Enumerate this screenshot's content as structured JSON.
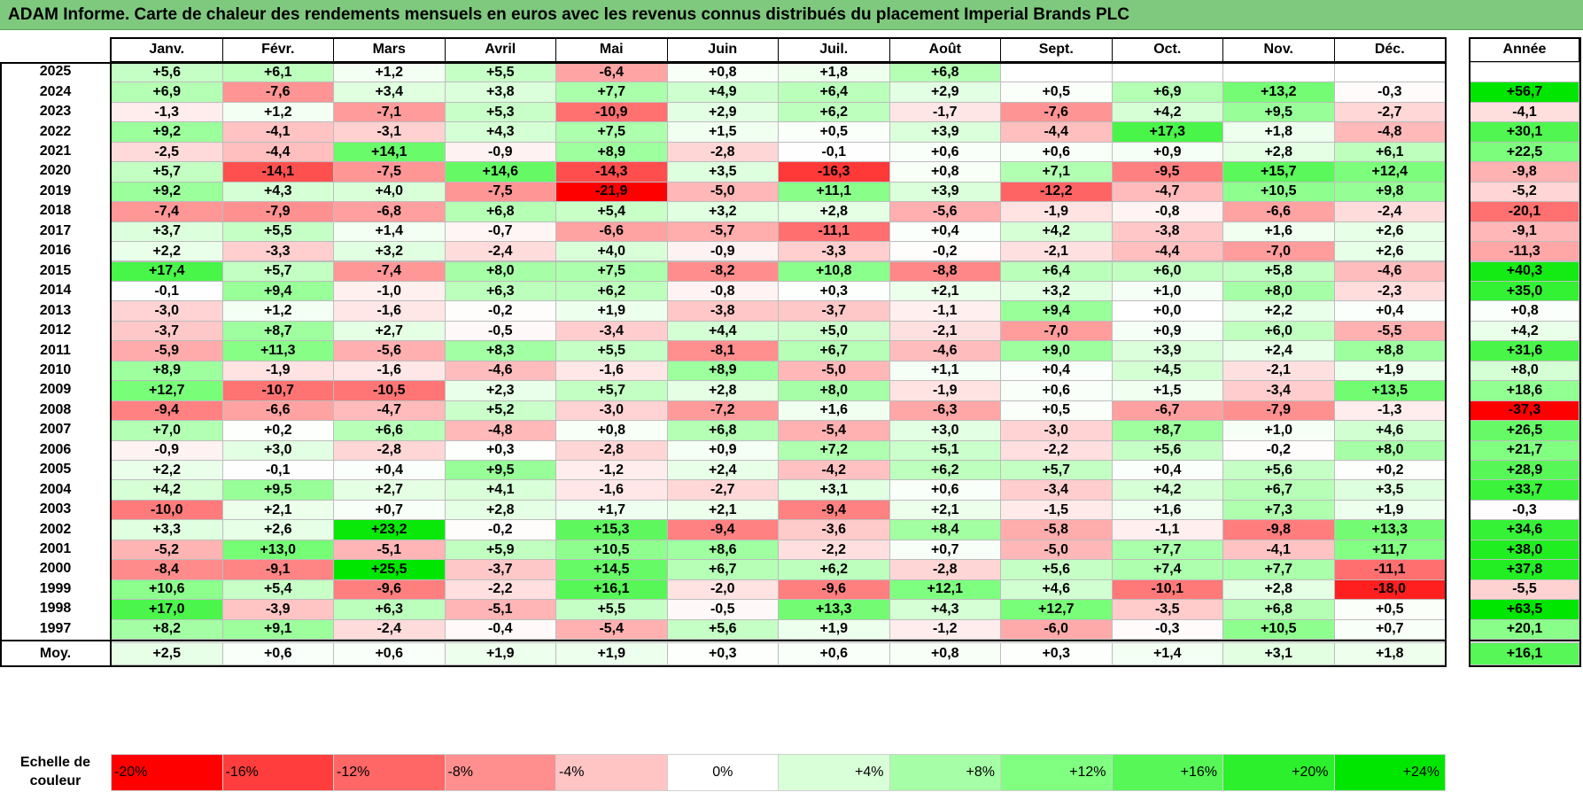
{
  "title": "ADAM Informe. Carte de chaleur des rendements mensuels en euros avec les revenus connus distribués du placement Imperial Brands PLC",
  "chart_data": {
    "type": "heatmap",
    "title": "ADAM Informe. Carte de chaleur des rendements mensuels en euros avec les revenus connus distribués du placement Imperial Brands PLC",
    "columns": [
      "Janv.",
      "Févr.",
      "Mars",
      "Avril",
      "Mai",
      "Juin",
      "Juil.",
      "Août",
      "Sept.",
      "Oct.",
      "Nov.",
      "Déc."
    ],
    "year_column_label": "Année",
    "rows": [
      {
        "year": "2025",
        "values": [
          "+5,6",
          "+6,1",
          "+1,2",
          "+5,5",
          "-6,4",
          "+0,8",
          "+1,8",
          "+6,8",
          "",
          "",
          "",
          ""
        ],
        "annual": ""
      },
      {
        "year": "2024",
        "values": [
          "+6,9",
          "-7,6",
          "+3,4",
          "+3,8",
          "+7,7",
          "+4,9",
          "+6,4",
          "+2,9",
          "+0,5",
          "+6,9",
          "+13,2",
          "-0,3"
        ],
        "annual": "+56,7"
      },
      {
        "year": "2023",
        "values": [
          "-1,3",
          "+1,2",
          "-7,1",
          "+5,3",
          "-10,9",
          "+2,9",
          "+6,2",
          "-1,7",
          "-7,6",
          "+4,2",
          "+9,5",
          "-2,7"
        ],
        "annual": "-4,1"
      },
      {
        "year": "2022",
        "values": [
          "+9,2",
          "-4,1",
          "-3,1",
          "+4,3",
          "+7,5",
          "+1,5",
          "+0,5",
          "+3,9",
          "-4,4",
          "+17,3",
          "+1,8",
          "-4,8"
        ],
        "annual": "+30,1"
      },
      {
        "year": "2021",
        "values": [
          "-2,5",
          "-4,4",
          "+14,1",
          "-0,9",
          "+8,9",
          "-2,8",
          "-0,1",
          "+0,6",
          "+0,6",
          "+0,9",
          "+2,8",
          "+6,1"
        ],
        "annual": "+22,5"
      },
      {
        "year": "2020",
        "values": [
          "+5,7",
          "-14,1",
          "-7,5",
          "+14,6",
          "-14,3",
          "+3,5",
          "-16,3",
          "+0,8",
          "+7,1",
          "-9,5",
          "+15,7",
          "+12,4"
        ],
        "annual": "-9,8"
      },
      {
        "year": "2019",
        "values": [
          "+9,2",
          "+4,3",
          "+4,0",
          "-7,5",
          "-21,9",
          "-5,0",
          "+11,1",
          "+3,9",
          "-12,2",
          "-4,7",
          "+10,5",
          "+9,8"
        ],
        "annual": "-5,2"
      },
      {
        "year": "2018",
        "values": [
          "-7,4",
          "-7,9",
          "-6,8",
          "+6,8",
          "+5,4",
          "+3,2",
          "+2,8",
          "-5,6",
          "-1,9",
          "-0,8",
          "-6,6",
          "-2,4"
        ],
        "annual": "-20,1"
      },
      {
        "year": "2017",
        "values": [
          "+3,7",
          "+5,5",
          "+1,4",
          "-0,7",
          "-6,6",
          "-5,7",
          "-11,1",
          "+0,4",
          "+4,2",
          "-3,8",
          "+1,6",
          "+2,6"
        ],
        "annual": "-9,1"
      },
      {
        "year": "2016",
        "values": [
          "+2,2",
          "-3,3",
          "+3,2",
          "-2,4",
          "+4,0",
          "-0,9",
          "-3,3",
          "-0,2",
          "-2,1",
          "-4,4",
          "-7,0",
          "+2,6"
        ],
        "annual": "-11,3"
      },
      {
        "year": "2015",
        "values": [
          "+17,4",
          "+5,7",
          "-7,4",
          "+8,0",
          "+7,5",
          "-8,2",
          "+10,8",
          "-8,8",
          "+6,4",
          "+6,0",
          "+5,8",
          "-4,6"
        ],
        "annual": "+40,3"
      },
      {
        "year": "2014",
        "values": [
          "-0,1",
          "+9,4",
          "-1,0",
          "+6,3",
          "+6,2",
          "-0,8",
          "+0,3",
          "+2,1",
          "+3,2",
          "+1,0",
          "+8,0",
          "-2,3"
        ],
        "annual": "+35,0"
      },
      {
        "year": "2013",
        "values": [
          "-3,0",
          "+1,2",
          "-1,6",
          "-0,2",
          "+1,9",
          "-3,8",
          "-3,7",
          "-1,1",
          "+9,4",
          "+0,0",
          "+2,2",
          "+0,4"
        ],
        "annual": "+0,8"
      },
      {
        "year": "2012",
        "values": [
          "-3,7",
          "+8,7",
          "+2,7",
          "-0,5",
          "-3,4",
          "+4,4",
          "+5,0",
          "-2,1",
          "-7,0",
          "+0,9",
          "+6,0",
          "-5,5"
        ],
        "annual": "+4,2"
      },
      {
        "year": "2011",
        "values": [
          "-5,9",
          "+11,3",
          "-5,6",
          "+8,3",
          "+5,5",
          "-8,1",
          "+6,7",
          "-4,6",
          "+9,0",
          "+3,9",
          "+2,4",
          "+8,8"
        ],
        "annual": "+31,6"
      },
      {
        "year": "2010",
        "values": [
          "+8,9",
          "-1,9",
          "-1,6",
          "-4,6",
          "-1,6",
          "+8,9",
          "-5,0",
          "+1,1",
          "+0,4",
          "+4,5",
          "-2,1",
          "+1,9"
        ],
        "annual": "+8,0"
      },
      {
        "year": "2009",
        "values": [
          "+12,7",
          "-10,7",
          "-10,5",
          "+2,3",
          "+5,7",
          "+2,8",
          "+8,0",
          "-1,9",
          "+0,6",
          "+1,5",
          "-3,4",
          "+13,5"
        ],
        "annual": "+18,6"
      },
      {
        "year": "2008",
        "values": [
          "-9,4",
          "-6,6",
          "-4,7",
          "+5,2",
          "-3,0",
          "-7,2",
          "+1,6",
          "-6,3",
          "+0,5",
          "-6,7",
          "-7,9",
          "-1,3"
        ],
        "annual": "-37,3"
      },
      {
        "year": "2007",
        "values": [
          "+7,0",
          "+0,2",
          "+6,6",
          "-4,8",
          "+0,8",
          "+6,8",
          "-5,4",
          "+3,0",
          "-3,0",
          "+8,7",
          "+1,0",
          "+4,6"
        ],
        "annual": "+26,5"
      },
      {
        "year": "2006",
        "values": [
          "-0,9",
          "+3,0",
          "-2,8",
          "+0,3",
          "-2,8",
          "+0,9",
          "+7,2",
          "+5,1",
          "-2,2",
          "+5,6",
          "-0,2",
          "+8,0"
        ],
        "annual": "+21,7"
      },
      {
        "year": "2005",
        "values": [
          "+2,2",
          "-0,1",
          "+0,4",
          "+9,5",
          "-1,2",
          "+2,4",
          "-4,2",
          "+6,2",
          "+5,7",
          "+0,4",
          "+5,6",
          "+0,2"
        ],
        "annual": "+28,9"
      },
      {
        "year": "2004",
        "values": [
          "+4,2",
          "+9,5",
          "+2,7",
          "+4,1",
          "-1,6",
          "-2,7",
          "+3,1",
          "+0,6",
          "-3,4",
          "+4,2",
          "+6,7",
          "+3,5"
        ],
        "annual": "+33,7"
      },
      {
        "year": "2003",
        "values": [
          "-10,0",
          "+2,1",
          "+0,7",
          "+2,8",
          "+1,7",
          "+2,1",
          "-9,4",
          "+2,1",
          "-1,5",
          "+1,6",
          "+7,3",
          "+1,9"
        ],
        "annual": "-0,3"
      },
      {
        "year": "2002",
        "values": [
          "+3,3",
          "+2,6",
          "+23,2",
          "-0,2",
          "+15,3",
          "-9,4",
          "-3,6",
          "+8,4",
          "-5,8",
          "-1,1",
          "-9,8",
          "+13,3"
        ],
        "annual": "+34,6"
      },
      {
        "year": "2001",
        "values": [
          "-5,2",
          "+13,0",
          "-5,1",
          "+5,9",
          "+10,5",
          "+8,6",
          "-2,2",
          "+0,7",
          "-5,0",
          "+7,7",
          "-4,1",
          "+11,7"
        ],
        "annual": "+38,0"
      },
      {
        "year": "2000",
        "values": [
          "-8,4",
          "-9,1",
          "+25,5",
          "-3,7",
          "+14,5",
          "+6,7",
          "+6,2",
          "-2,8",
          "+5,6",
          "+7,4",
          "+7,7",
          "-11,1"
        ],
        "annual": "+37,8"
      },
      {
        "year": "1999",
        "values": [
          "+10,6",
          "+5,4",
          "-9,6",
          "-2,2",
          "+16,1",
          "-2,0",
          "-9,6",
          "+12,1",
          "+4,6",
          "-10,1",
          "+2,8",
          "-18,0"
        ],
        "annual": "-5,5"
      },
      {
        "year": "1998",
        "values": [
          "+17,0",
          "-3,9",
          "+6,3",
          "-5,1",
          "+5,5",
          "-0,5",
          "+13,3",
          "+4,3",
          "+12,7",
          "-3,5",
          "+6,8",
          "+0,5"
        ],
        "annual": "+63,5"
      },
      {
        "year": "1997",
        "values": [
          "+8,2",
          "+9,1",
          "-2,4",
          "-0,4",
          "-5,4",
          "+5,6",
          "+1,9",
          "-1,2",
          "-6,0",
          "-0,3",
          "+10,5",
          "+0,7"
        ],
        "annual": "+20,1"
      }
    ],
    "average_row": {
      "label": "Moy.",
      "values": [
        "+2,5",
        "+0,6",
        "+0,6",
        "+1,9",
        "+1,9",
        "+0,3",
        "+0,6",
        "+0,8",
        "+0,3",
        "+1,4",
        "+3,1",
        "+1,8"
      ],
      "annual": "+16,1"
    },
    "scale": {
      "label_line1": "Echelle de",
      "label_line2": "couleur",
      "steps": [
        {
          "label": "-20%",
          "value": -20,
          "color": "#ff0000"
        },
        {
          "label": "-16%",
          "value": -16,
          "color": "#ff3d3d"
        },
        {
          "label": "-12%",
          "value": -12,
          "color": "#ff6666"
        },
        {
          "label": "-8%",
          "value": -8,
          "color": "#ff8f8f"
        },
        {
          "label": "-4%",
          "value": -4,
          "color": "#ffc4c4"
        },
        {
          "label": "0%",
          "value": 0,
          "color": "#ffffff"
        },
        {
          "label": "+4%",
          "value": 4,
          "color": "#d9ffd9"
        },
        {
          "label": "+8%",
          "value": 8,
          "color": "#a6ffa6"
        },
        {
          "label": "+12%",
          "value": 12,
          "color": "#80ff80"
        },
        {
          "label": "+16%",
          "value": 16,
          "color": "#57f757"
        },
        {
          "label": "+20%",
          "value": 20,
          "color": "#2bf02b"
        },
        {
          "label": "+24%",
          "value": 24,
          "color": "#00e600"
        }
      ]
    }
  }
}
